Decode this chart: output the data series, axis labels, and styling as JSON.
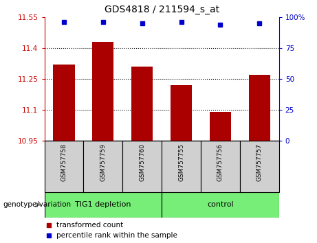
{
  "title": "GDS4818 / 211594_s_at",
  "samples": [
    "GSM757758",
    "GSM757759",
    "GSM757760",
    "GSM757755",
    "GSM757756",
    "GSM757757"
  ],
  "bar_values": [
    11.32,
    11.43,
    11.31,
    11.22,
    11.09,
    11.27
  ],
  "percentile_values": [
    96,
    96,
    95,
    96,
    94,
    95
  ],
  "ylim_left": [
    10.95,
    11.55
  ],
  "ylim_right": [
    0,
    100
  ],
  "yticks_left": [
    10.95,
    11.1,
    11.25,
    11.4,
    11.55
  ],
  "yticks_right": [
    0,
    25,
    50,
    75,
    100
  ],
  "ytick_labels_left": [
    "10.95",
    "11.1",
    "11.25",
    "11.4",
    "11.55"
  ],
  "ytick_labels_right": [
    "0",
    "25",
    "50",
    "75",
    "100%"
  ],
  "bar_color": "#aa0000",
  "dot_color": "#0000cc",
  "group1_label": "TIG1 depletion",
  "group2_label": "control",
  "group1_color": "#77ee77",
  "group2_color": "#77ee77",
  "legend_red_label": "transformed count",
  "legend_blue_label": "percentile rank within the sample",
  "genotype_label": "genotype/variation",
  "bar_width": 0.55,
  "left_tick_color": "#cc0000",
  "right_tick_color": "#0000cc",
  "grid_color": "black",
  "grid_linestyle": "dotted",
  "grid_linewidth": 0.8
}
